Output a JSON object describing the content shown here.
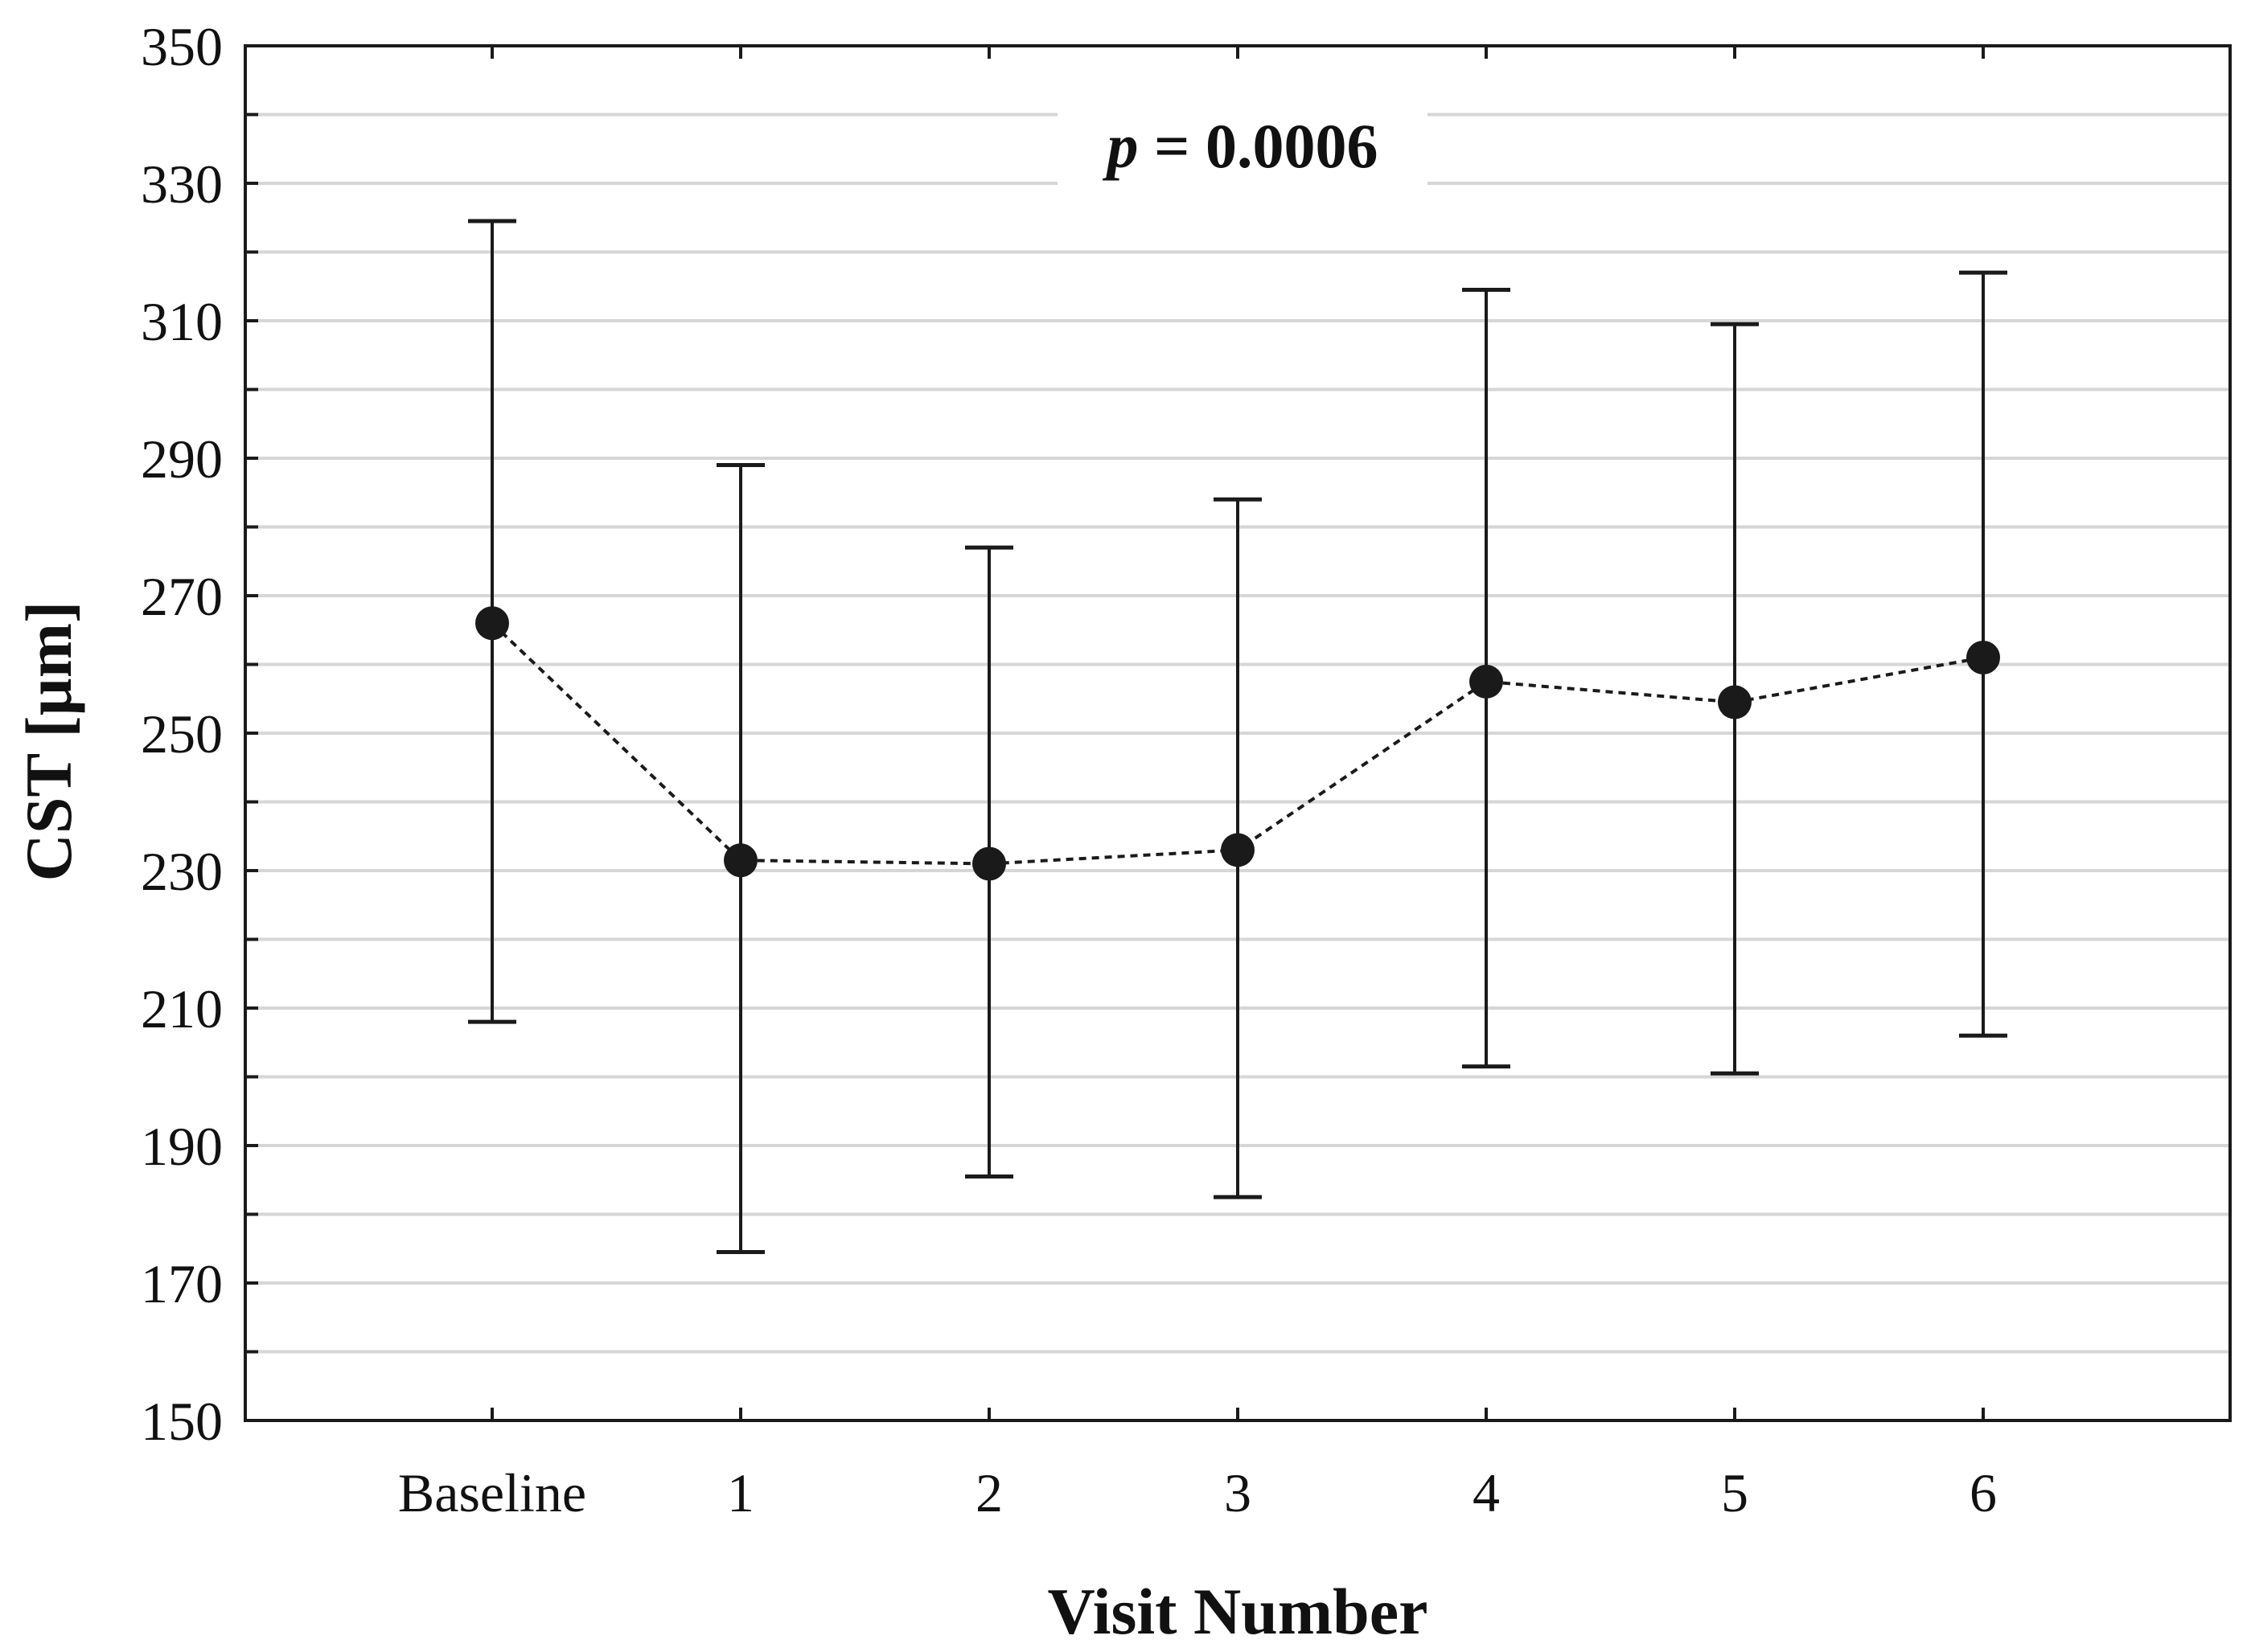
{
  "chart_data": {
    "type": "line",
    "xlabel": "Visit Number",
    "ylabel": "CST [µm]",
    "categories": [
      "Baseline",
      "1",
      "2",
      "3",
      "4",
      "5",
      "6"
    ],
    "mean": [
      266,
      231.5,
      231,
      233,
      257.5,
      254.5,
      261
    ],
    "error_upper": [
      324.5,
      289,
      277,
      284,
      314.5,
      309.5,
      317
    ],
    "error_lower": [
      208,
      174.5,
      185.5,
      182.5,
      201.5,
      200.5,
      206
    ],
    "ylim": [
      150,
      350
    ],
    "yticks": [
      150,
      170,
      190,
      210,
      230,
      250,
      270,
      290,
      310,
      330,
      350
    ],
    "grid": true,
    "line_style": "dotted",
    "annotation": {
      "italic": "p",
      "rest": " = 0.0006"
    },
    "colors": {
      "marker": "#1a1a1a",
      "grid": "#d6d6d6",
      "axis": "#1a1a1a"
    }
  }
}
